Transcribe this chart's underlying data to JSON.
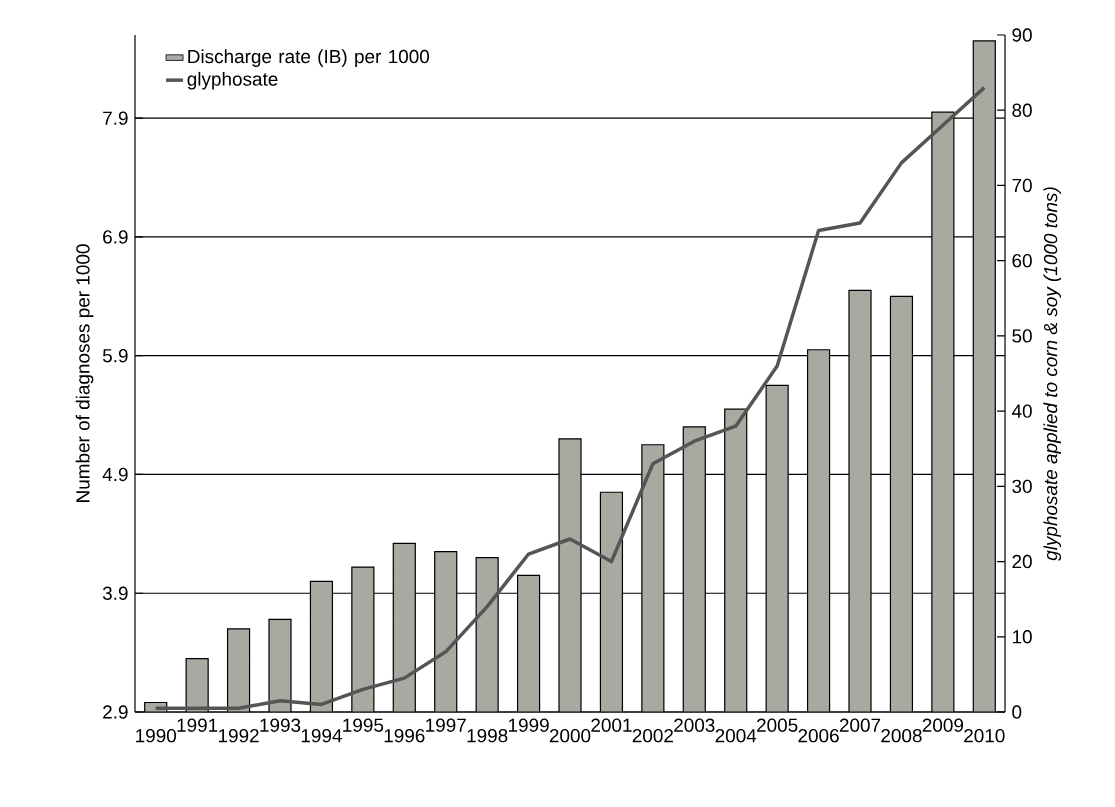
{
  "chart_data": {
    "type": "bar",
    "xlabel": null,
    "ylabel": "Number of diagnoses per 1000",
    "y2label": "glyphosate applied to corn & soy (1000 tons)",
    "categories": [
      "1990",
      "1991",
      "1992",
      "1993",
      "1994",
      "1995",
      "1996",
      "1997",
      "1998",
      "1999",
      "2000",
      "2001",
      "2002",
      "2003",
      "2004",
      "2005",
      "2006",
      "2007",
      "2008",
      "2009",
      "2010"
    ],
    "series": [
      {
        "name": "Discharge rate (IB) per 1000",
        "color": "#a9a9a1",
        "values": [
          2.98,
          3.35,
          3.6,
          3.68,
          4.0,
          4.12,
          4.32,
          4.25,
          4.2,
          4.05,
          5.2,
          4.75,
          5.15,
          5.3,
          5.45,
          5.65,
          5.95,
          6.45,
          6.4,
          7.95,
          8.55
        ]
      },
      {
        "name": "glyphosate",
        "type": "line",
        "axis": "y2",
        "color": "#555555",
        "values": [
          0.5,
          0.5,
          0.5,
          1.5,
          1,
          3,
          4.5,
          8,
          14,
          21,
          23,
          20,
          33,
          36,
          38,
          46,
          64,
          65,
          73,
          78,
          83
        ]
      }
    ],
    "ylim": [
      2.9,
      8.6
    ],
    "yticks": [
      2.9,
      3.9,
      4.9,
      5.9,
      6.9,
      7.9
    ],
    "y2lim": [
      0,
      90
    ],
    "y2ticks": [
      0,
      10,
      20,
      30,
      40,
      50,
      60,
      70,
      80,
      90
    ],
    "grid": "y",
    "legend": "top left"
  }
}
